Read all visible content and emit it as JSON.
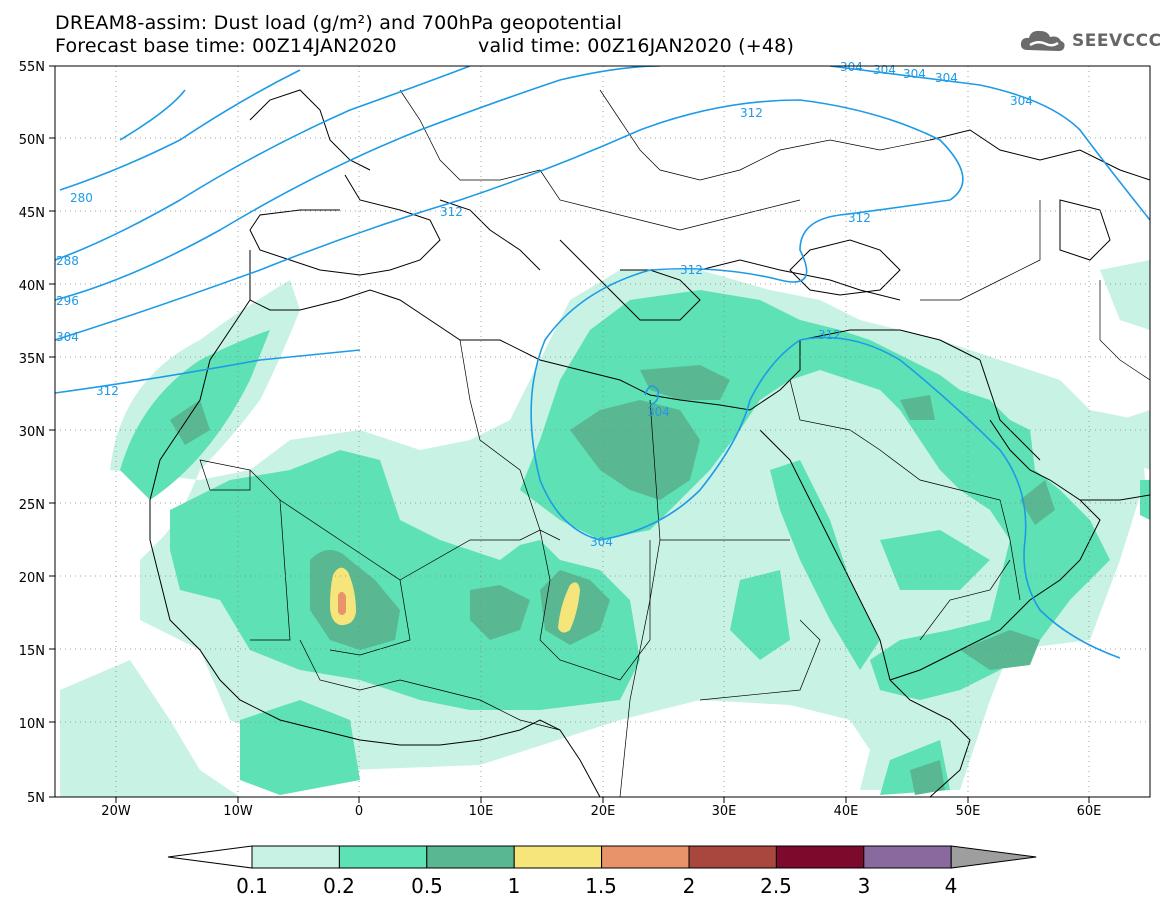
{
  "header": {
    "title_line1": "DREAM8-assim: Dust load (g/m²) and 700hPa geopotential",
    "title_line2_left": "Forecast base time: 00Z14JAN2020",
    "title_line2_right": "valid time: 00Z16JAN2020 (+48)",
    "logo_text": "SEEVCCC"
  },
  "map": {
    "lat_ticks": [
      "55N",
      "50N",
      "45N",
      "40N",
      "35N",
      "30N",
      "25N",
      "20N",
      "15N",
      "10N",
      "5N"
    ],
    "lon_ticks": [
      "20W",
      "10W",
      "0",
      "10E",
      "20E",
      "30E",
      "40E",
      "50E",
      "60E"
    ],
    "contour_labels": [
      "280",
      "288",
      "296",
      "304",
      "312",
      "312",
      "312",
      "312",
      "312",
      "312",
      "304",
      "304",
      "304",
      "304",
      "304",
      "304",
      "304"
    ],
    "contour_color": "#1e9be6"
  },
  "colorbar": {
    "labels": [
      "0.1",
      "0.2",
      "0.5",
      "1",
      "1.5",
      "2",
      "2.5",
      "3",
      "4"
    ],
    "colors": [
      "#c8f2e4",
      "#5ee1b4",
      "#59b892",
      "#f5e57a",
      "#e9936b",
      "#a8473e",
      "#7d0a2c",
      "#8a6a9e",
      "#9e9e9e"
    ]
  }
}
